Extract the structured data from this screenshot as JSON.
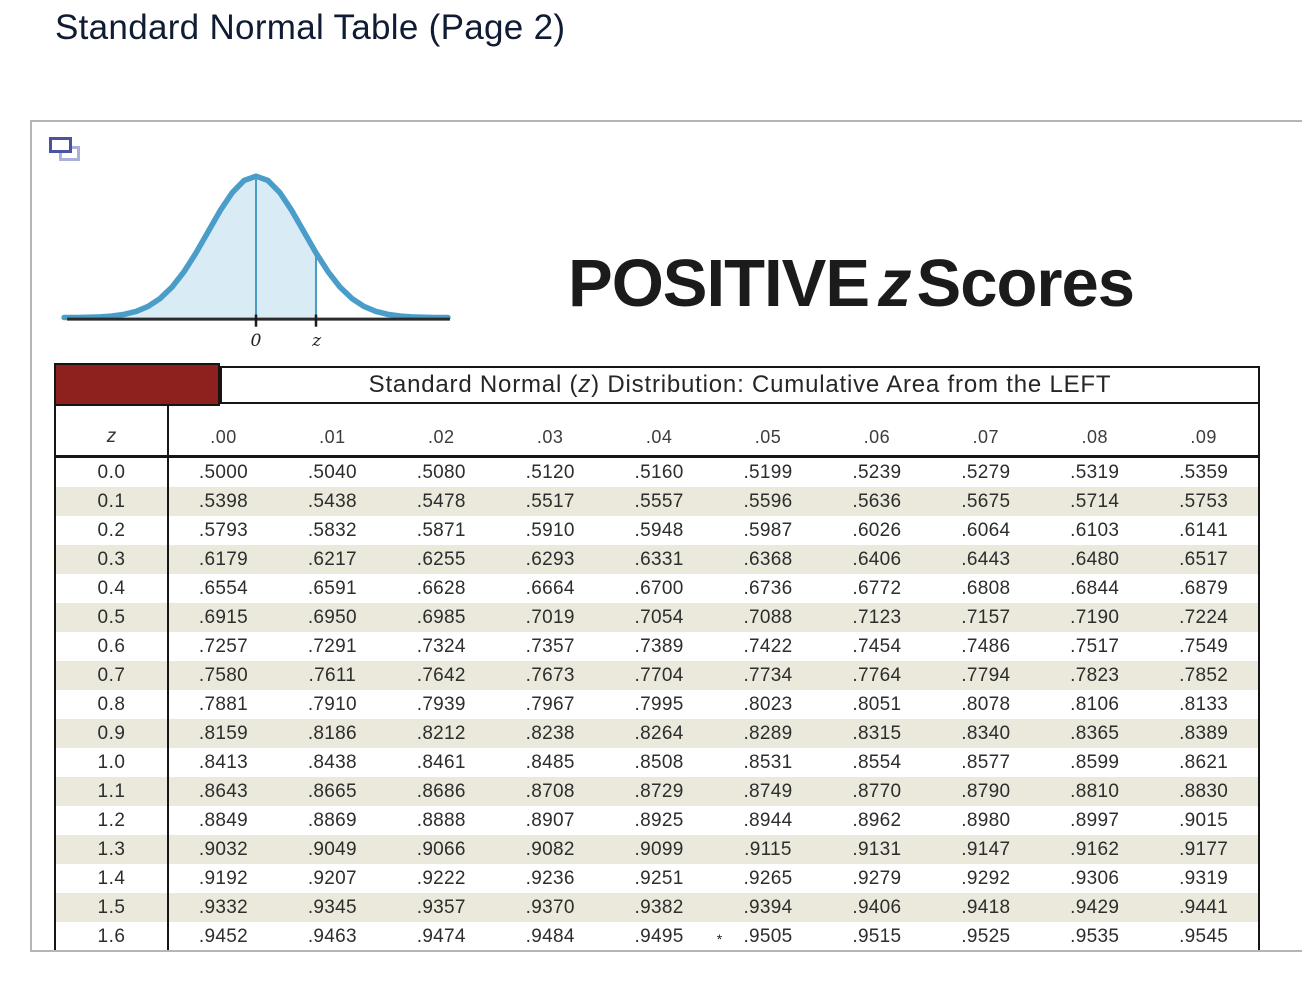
{
  "page": {
    "title": "Standard Normal Table (Page 2)"
  },
  "viewer": {
    "popout_icon": "overlapping-windows"
  },
  "figure": {
    "heading": {
      "pre": "POSITIVE",
      "z": "z",
      "post": "Scores"
    },
    "curve": {
      "zero_label": "0",
      "z_label": "z",
      "stroke_color": "#4a9cc9",
      "fill_color": "#d9ecf5",
      "axis_color": "#2b2b2b"
    }
  },
  "table": {
    "title": {
      "pre": "Standard Normal (",
      "z": "z",
      "post": ") Distribution: Cumulative Area from the LEFT"
    },
    "accent_color": "#8e211d",
    "stripe_color": "#eae9dc",
    "columns": [
      "z",
      ".00",
      ".01",
      ".02",
      ".03",
      ".04",
      ".05",
      ".06",
      ".07",
      ".08",
      ".09"
    ],
    "rows": [
      {
        "z": "0.0",
        "values": [
          ".5000",
          ".5040",
          ".5080",
          ".5120",
          ".5160",
          ".5199",
          ".5239",
          ".5279",
          ".5319",
          ".5359"
        ]
      },
      {
        "z": "0.1",
        "values": [
          ".5398",
          ".5438",
          ".5478",
          ".5517",
          ".5557",
          ".5596",
          ".5636",
          ".5675",
          ".5714",
          ".5753"
        ]
      },
      {
        "z": "0.2",
        "values": [
          ".5793",
          ".5832",
          ".5871",
          ".5910",
          ".5948",
          ".5987",
          ".6026",
          ".6064",
          ".6103",
          ".6141"
        ]
      },
      {
        "z": "0.3",
        "values": [
          ".6179",
          ".6217",
          ".6255",
          ".6293",
          ".6331",
          ".6368",
          ".6406",
          ".6443",
          ".6480",
          ".6517"
        ]
      },
      {
        "z": "0.4",
        "values": [
          ".6554",
          ".6591",
          ".6628",
          ".6664",
          ".6700",
          ".6736",
          ".6772",
          ".6808",
          ".6844",
          ".6879"
        ]
      },
      {
        "z": "0.5",
        "values": [
          ".6915",
          ".6950",
          ".6985",
          ".7019",
          ".7054",
          ".7088",
          ".7123",
          ".7157",
          ".7190",
          ".7224"
        ]
      },
      {
        "z": "0.6",
        "values": [
          ".7257",
          ".7291",
          ".7324",
          ".7357",
          ".7389",
          ".7422",
          ".7454",
          ".7486",
          ".7517",
          ".7549"
        ]
      },
      {
        "z": "0.7",
        "values": [
          ".7580",
          ".7611",
          ".7642",
          ".7673",
          ".7704",
          ".7734",
          ".7764",
          ".7794",
          ".7823",
          ".7852"
        ]
      },
      {
        "z": "0.8",
        "values": [
          ".7881",
          ".7910",
          ".7939",
          ".7967",
          ".7995",
          ".8023",
          ".8051",
          ".8078",
          ".8106",
          ".8133"
        ]
      },
      {
        "z": "0.9",
        "values": [
          ".8159",
          ".8186",
          ".8212",
          ".8238",
          ".8264",
          ".8289",
          ".8315",
          ".8340",
          ".8365",
          ".8389"
        ]
      },
      {
        "z": "1.0",
        "values": [
          ".8413",
          ".8438",
          ".8461",
          ".8485",
          ".8508",
          ".8531",
          ".8554",
          ".8577",
          ".8599",
          ".8621"
        ]
      },
      {
        "z": "1.1",
        "values": [
          ".8643",
          ".8665",
          ".8686",
          ".8708",
          ".8729",
          ".8749",
          ".8770",
          ".8790",
          ".8810",
          ".8830"
        ]
      },
      {
        "z": "1.2",
        "values": [
          ".8849",
          ".8869",
          ".8888",
          ".8907",
          ".8925",
          ".8944",
          ".8962",
          ".8980",
          ".8997",
          ".9015"
        ]
      },
      {
        "z": "1.3",
        "values": [
          ".9032",
          ".9049",
          ".9066",
          ".9082",
          ".9099",
          ".9115",
          ".9131",
          ".9147",
          ".9162",
          ".9177"
        ]
      },
      {
        "z": "1.4",
        "values": [
          ".9192",
          ".9207",
          ".9222",
          ".9236",
          ".9251",
          ".9265",
          ".9279",
          ".9292",
          ".9306",
          ".9319"
        ]
      },
      {
        "z": "1.5",
        "values": [
          ".9332",
          ".9345",
          ".9357",
          ".9370",
          ".9382",
          ".9394",
          ".9406",
          ".9418",
          ".9429",
          ".9441"
        ]
      },
      {
        "z": "1.6",
        "values": [
          ".9452",
          ".9463",
          ".9474",
          ".9484",
          ".9495",
          ".9505",
          ".9515",
          ".9525",
          ".9535",
          ".9545"
        ]
      }
    ],
    "star_marker": {
      "symbol": "*",
      "row": "1.6",
      "after_column": ".04"
    }
  }
}
